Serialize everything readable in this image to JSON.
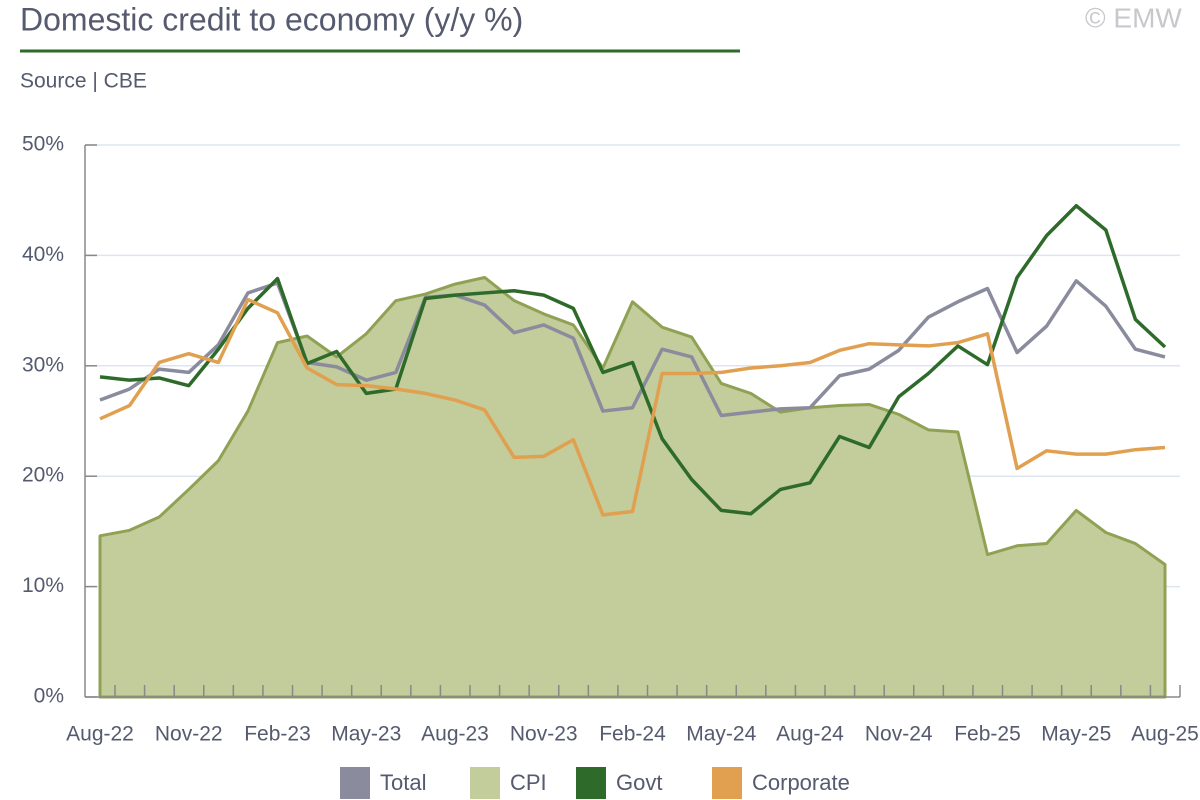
{
  "chart_data": {
    "type": "line",
    "title": "Domestic credit to economy (y/y %)",
    "subtitle": "Source | CBE",
    "watermark": "© EMW",
    "categories": [
      "Aug-22",
      null,
      null,
      "Nov-22",
      null,
      null,
      "Feb-23",
      null,
      null,
      "May-23",
      null,
      null,
      "Aug-23",
      null,
      null,
      "Nov-23",
      null,
      null,
      "Feb-24",
      null,
      null,
      "May-24",
      null,
      null,
      "Aug-24",
      null,
      null,
      "Nov-24",
      null,
      null,
      "Feb-25",
      null,
      null,
      "May-25",
      null,
      null,
      "Aug-25"
    ],
    "series": [
      {
        "name": "Total",
        "color": "#8a8c9e",
        "values": [
          26.9,
          27.9,
          29.7,
          29.4,
          31.9,
          36.6,
          37.5,
          30.3,
          29.9,
          28.7,
          29.4,
          36.2,
          36.4,
          35.5,
          33.0,
          33.7,
          32.5,
          25.9,
          26.2,
          31.5,
          30.8,
          25.5,
          25.8,
          26.1,
          26.2,
          29.1,
          29.7,
          31.4,
          34.4,
          35.8,
          37.0,
          31.2,
          33.6,
          37.7,
          35.4,
          31.5,
          30.8
        ]
      },
      {
        "name": "CPI",
        "color": "#8fa254",
        "fill": "#c3cc9b",
        "values": [
          14.6,
          15.1,
          16.3,
          18.8,
          21.4,
          25.9,
          32.1,
          32.7,
          30.8,
          32.9,
          35.9,
          36.5,
          37.4,
          38.0,
          35.9,
          34.7,
          33.7,
          29.8,
          35.8,
          33.5,
          32.6,
          28.4,
          27.5,
          25.8,
          26.2,
          26.4,
          26.5,
          25.6,
          24.2,
          24.0,
          12.9,
          13.7,
          13.9,
          16.9,
          14.9,
          13.9,
          12.0
        ]
      },
      {
        "name": "Govt",
        "color": "#2e6b2a",
        "values": [
          29.0,
          28.7,
          28.9,
          28.2,
          31.5,
          35.2,
          37.9,
          30.2,
          31.3,
          27.5,
          27.9,
          36.1,
          36.4,
          36.6,
          36.8,
          36.4,
          35.2,
          29.4,
          30.3,
          23.4,
          19.7,
          16.9,
          16.6,
          18.8,
          19.4,
          23.6,
          22.6,
          27.2,
          29.3,
          31.8,
          30.1,
          38.0,
          41.8,
          44.5,
          42.3,
          34.2,
          31.7
        ]
      },
      {
        "name": "Corporate",
        "color": "#e0a050",
        "values": [
          25.2,
          26.4,
          30.3,
          31.1,
          30.3,
          36.0,
          34.8,
          29.8,
          28.3,
          28.2,
          27.9,
          27.5,
          26.9,
          26.0,
          21.7,
          21.8,
          23.3,
          16.5,
          16.8,
          29.3,
          29.3,
          29.4,
          29.8,
          30.0,
          30.3,
          31.4,
          32.0,
          31.9,
          31.8,
          32.1,
          32.9,
          20.7,
          22.3,
          22.0,
          22.0,
          22.4,
          22.6
        ]
      }
    ],
    "ylim": [
      0,
      50
    ],
    "yticks": [
      {
        "value": 0,
        "label": "0%"
      },
      {
        "value": 10,
        "label": "10%"
      },
      {
        "value": 20,
        "label": "20%"
      },
      {
        "value": 30,
        "label": "30%"
      },
      {
        "value": 40,
        "label": "40%"
      },
      {
        "value": 50,
        "label": "50%"
      }
    ],
    "grid": true,
    "legend": "bottom"
  }
}
